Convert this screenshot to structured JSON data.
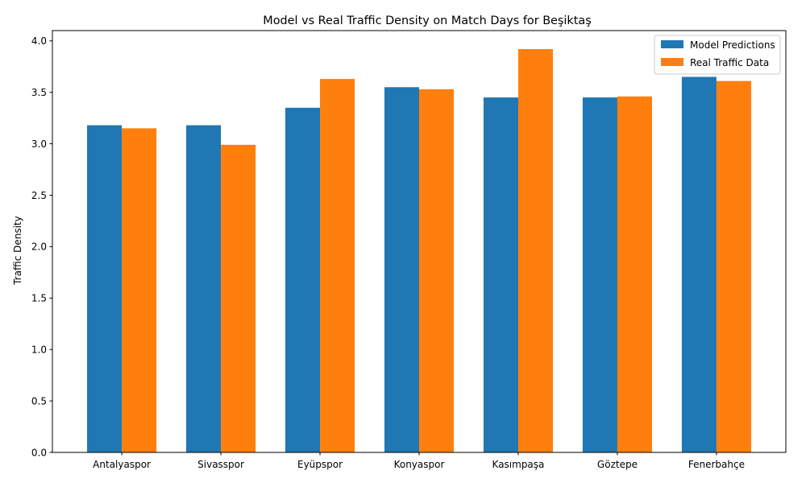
{
  "chart_data": {
    "type": "bar",
    "title": "Model vs Real Traffic Density on Match Days for Beşiktaş",
    "xlabel": "",
    "ylabel": "Traffic Density",
    "categories": [
      "Antalyaspor",
      "Sivasspor",
      "Eyüpspor",
      "Konyaspor",
      "Kasımpaşa",
      "Göztepe",
      "Fenerbahçe"
    ],
    "series": [
      {
        "name": "Model Predictions",
        "color": "#1f77b4",
        "values": [
          3.18,
          3.18,
          3.35,
          3.55,
          3.45,
          3.45,
          3.65
        ]
      },
      {
        "name": "Real Traffic Data",
        "color": "#ff7f0e",
        "values": [
          3.15,
          2.99,
          3.63,
          3.53,
          3.92,
          3.46,
          3.61
        ]
      }
    ],
    "ylim": [
      0,
      4.1
    ],
    "yticks": [
      "0.0",
      "0.5",
      "1.0",
      "1.5",
      "2.0",
      "2.5",
      "3.0",
      "3.5",
      "4.0"
    ],
    "grid": false,
    "legend_position": "top-right"
  }
}
